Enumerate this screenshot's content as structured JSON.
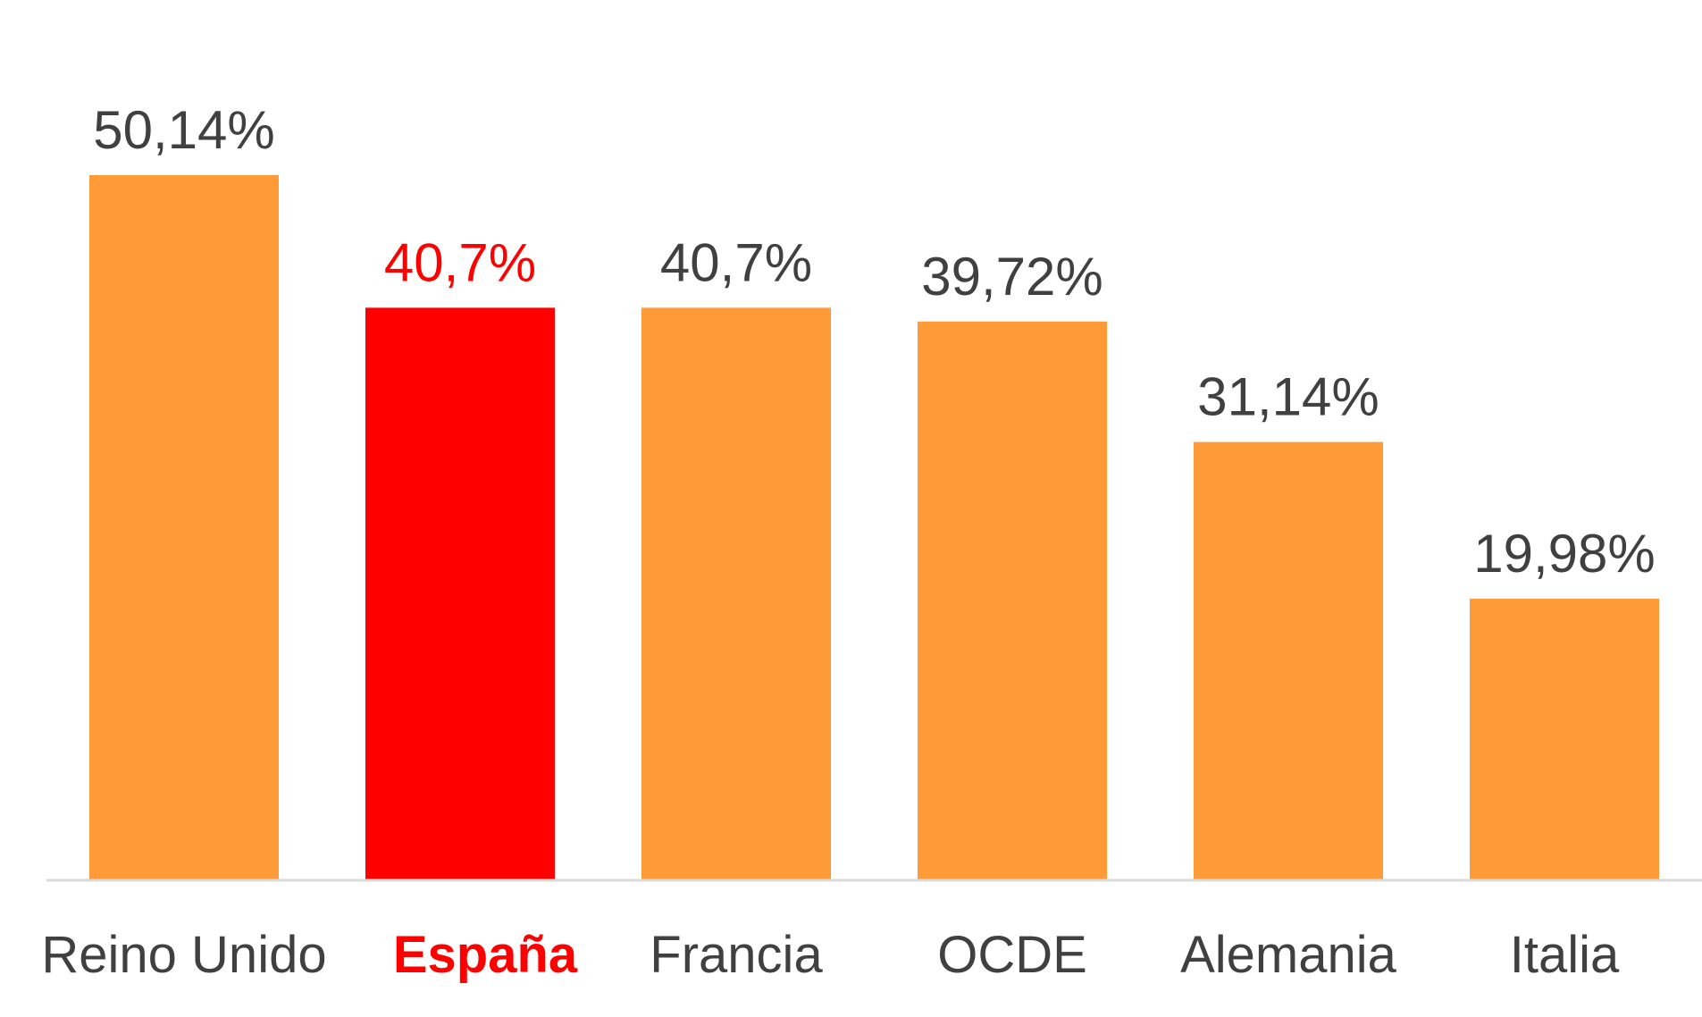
{
  "chart_data": {
    "type": "bar",
    "categories": [
      "Reino Unido",
      "España",
      "Francia",
      "OCDE",
      "Alemania",
      "Italia"
    ],
    "values": [
      50.14,
      40.7,
      40.7,
      39.72,
      31.14,
      19.98
    ],
    "value_labels": [
      "50,14%",
      "40,7%",
      "40,7%",
      "39,72%",
      "31,14%",
      "19,98%"
    ],
    "highlight": [
      false,
      true,
      false,
      false,
      false,
      false
    ],
    "ylim": [
      0,
      50.14
    ],
    "grid": false,
    "legend": "none",
    "title": "",
    "xlabel": "",
    "ylabel": ""
  },
  "colors": {
    "bar": "#FF9A38",
    "highlight_bar": "#FF0000",
    "label_text": "#404040",
    "highlight_text": "#FF0000",
    "axis_line": "#D9D9D9"
  }
}
